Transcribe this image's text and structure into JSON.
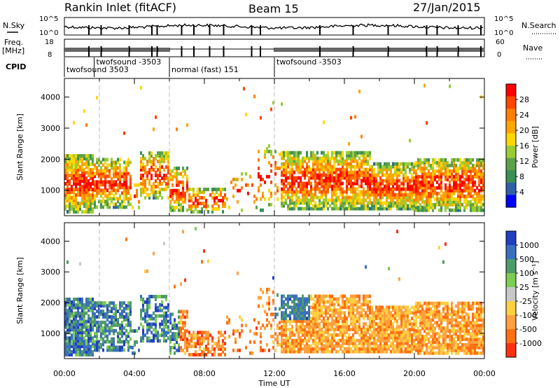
{
  "header": {
    "station": "Rankin Inlet (fitACF)",
    "beam": "Beam 15",
    "date": "27/Jan/2015"
  },
  "strips": {
    "nsky_label": "N.Sky",
    "nsky_ticks": [
      "10^5",
      "10^0"
    ],
    "nsearch_label": "N.Search",
    "nsearch_ticks": [
      "10^5",
      "10^0"
    ],
    "freq_label": "Freq.",
    "freq_unit": "[MHz]",
    "freq_ticks": [
      "18",
      "8"
    ],
    "nave_label": "Nave",
    "nave_ticks": [
      "60",
      "0"
    ],
    "cpid_label": "CPID",
    "cpid_segments": [
      {
        "label": "twofsound 3503",
        "start": 0,
        "end": 6
      },
      {
        "label": "twofsound -3503",
        "start": 1.7,
        "end": 6
      },
      {
        "label": "normal (fast) 151",
        "start": 6,
        "end": 12
      },
      {
        "label": "twofsound -3503",
        "start": 12,
        "end": 24
      }
    ]
  },
  "chart_data": [
    {
      "type": "heatmap",
      "name": "power",
      "ylabel": "Slant Range [km]",
      "xlabel": "",
      "xlim": [
        0,
        24
      ],
      "ylim": [
        180,
        4600
      ],
      "yticks": [
        "1000",
        "2000",
        "3000",
        "4000"
      ],
      "colorbar": {
        "label": "Power [dB]",
        "ticks": [
          "4",
          "8",
          "12",
          "16",
          "20",
          "24",
          "28"
        ],
        "colors": [
          "#0000ff",
          "#2e5fa8",
          "#3a8f55",
          "#5ca04a",
          "#9acd32",
          "#ffd700",
          "#ffa500",
          "#ff7f00",
          "#ff4500",
          "#ff0000"
        ]
      }
    },
    {
      "type": "heatmap",
      "name": "velocity",
      "ylabel": "Slant Range [km]",
      "xlabel": "Time UT",
      "xlim": [
        0,
        24
      ],
      "ylim": [
        180,
        4600
      ],
      "yticks": [
        "1000",
        "2000",
        "3000",
        "4000"
      ],
      "xticks": [
        "00:00",
        "04:00",
        "08:00",
        "12:00",
        "16:00",
        "20:00",
        "00:00"
      ],
      "colorbar": {
        "label": "Velocity [m s⁻¹]",
        "ticks": [
          "1000",
          "500",
          "100",
          "25",
          "-25",
          "-100",
          "-500",
          "-1000"
        ],
        "colors": [
          "#2040c0",
          "#3a6fc0",
          "#4f9a6a",
          "#7ccd52",
          "#c8c8c8",
          "#ffd040",
          "#ffa040",
          "#ff7010",
          "#ff3010"
        ]
      }
    }
  ]
}
